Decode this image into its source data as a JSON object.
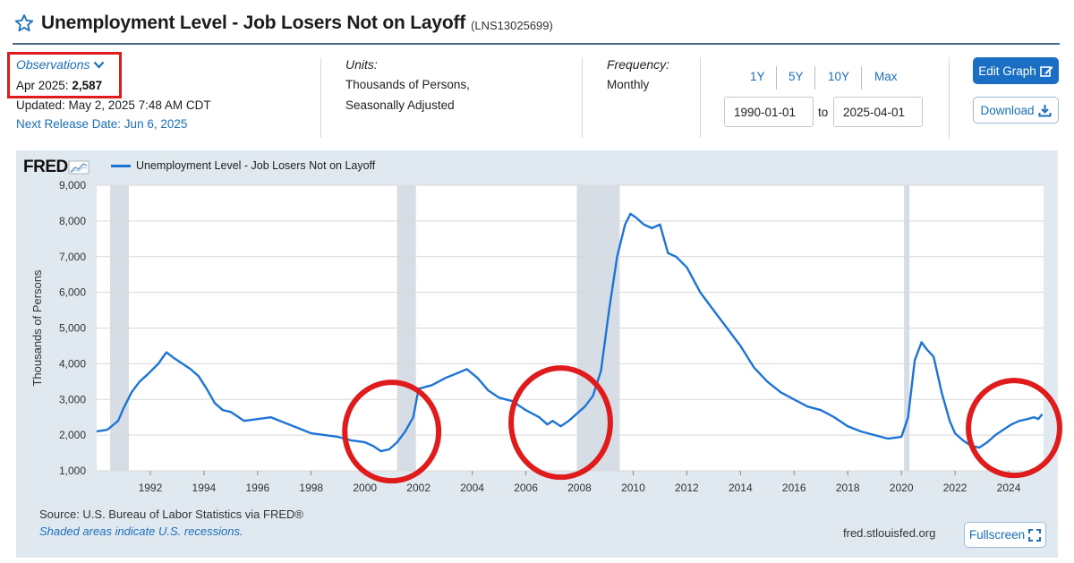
{
  "header": {
    "title": "Unemployment Level - Job Losers Not on Layoff",
    "series_id": "(LNS13025699)"
  },
  "observations": {
    "label": "Observations",
    "date": "Apr 2025:",
    "value": "2,587",
    "updated": "Updated: May 2, 2025 7:48 AM CDT",
    "next_release": "Next Release Date: Jun 6, 2025"
  },
  "units": {
    "title": "Units:",
    "line1": "Thousands of Persons,",
    "line2": "Seasonally Adjusted"
  },
  "frequency": {
    "title": "Frequency:",
    "value": "Monthly"
  },
  "range": {
    "buttons": [
      "1Y",
      "5Y",
      "10Y",
      "Max"
    ],
    "start": "1990-01-01",
    "to_label": "to",
    "end": "2025-04-01"
  },
  "actions": {
    "edit_graph": "Edit Graph",
    "download": "Download",
    "fullscreen": "Fullscreen"
  },
  "chart_meta": {
    "logo": "FRED",
    "source": "Source: U.S. Bureau of Labor Statistics via FRED®",
    "shaded_note": "Shaded areas indicate U.S. recessions.",
    "url": "fred.stlouisfed.org",
    "line_color": "#1e74d6",
    "recession_color": "#d6dde4",
    "annotation_color": "#e01b1b"
  },
  "chart_data": {
    "type": "line",
    "ylabel": "Thousands of Persons",
    "ylim": [
      1000,
      9000
    ],
    "xlim": [
      1990.0,
      2025.3
    ],
    "yticks": [
      1000,
      2000,
      3000,
      4000,
      5000,
      6000,
      7000,
      8000,
      9000
    ],
    "ytick_labels": [
      "1,000",
      "2,000",
      "3,000",
      "4,000",
      "5,000",
      "6,000",
      "7,000",
      "8,000",
      "9,000"
    ],
    "xticks": [
      1992,
      1994,
      1996,
      1998,
      2000,
      2002,
      2004,
      2006,
      2008,
      2010,
      2012,
      2014,
      2016,
      2018,
      2020,
      2022,
      2024
    ],
    "grid": true,
    "legend_position": "top-left",
    "recessions": [
      [
        1990.5,
        1991.2
      ],
      [
        2001.2,
        2001.9
      ],
      [
        2007.9,
        2009.5
      ],
      [
        2020.1,
        2020.3
      ]
    ],
    "annotations": [
      {
        "type": "circle",
        "cx": 2001.0,
        "cy": 2100,
        "rx": 1.75,
        "ry": 1380
      },
      {
        "type": "circle",
        "cx": 2007.3,
        "cy": 2350,
        "rx": 1.85,
        "ry": 1530
      },
      {
        "type": "circle",
        "cx": 2024.2,
        "cy": 2200,
        "rx": 1.7,
        "ry": 1330
      }
    ],
    "series": [
      {
        "name": "Unemployment Level - Job Losers Not on Layoff",
        "x": [
          1990.0,
          1990.4,
          1990.8,
          1991.0,
          1991.3,
          1991.6,
          1991.9,
          1992.3,
          1992.6,
          1992.9,
          1993.2,
          1993.5,
          1993.8,
          1994.1,
          1994.4,
          1994.7,
          1995.0,
          1995.5,
          1996.0,
          1996.5,
          1997.0,
          1997.5,
          1998.0,
          1998.5,
          1999.0,
          1999.5,
          2000.0,
          2000.3,
          2000.6,
          2000.9,
          2001.2,
          2001.5,
          2001.8,
          2002.0,
          2002.5,
          2003.0,
          2003.5,
          2003.8,
          2004.2,
          2004.6,
          2005.0,
          2005.5,
          2006.0,
          2006.5,
          2006.8,
          2007.0,
          2007.3,
          2007.6,
          2007.9,
          2008.2,
          2008.5,
          2008.8,
          2009.1,
          2009.4,
          2009.7,
          2009.9,
          2010.1,
          2010.4,
          2010.7,
          2011.0,
          2011.3,
          2011.6,
          2012.0,
          2012.5,
          2013.0,
          2013.5,
          2014.0,
          2014.5,
          2015.0,
          2015.5,
          2016.0,
          2016.5,
          2017.0,
          2017.5,
          2018.0,
          2018.5,
          2019.0,
          2019.5,
          2020.0,
          2020.25,
          2020.5,
          2020.75,
          2020.95,
          2021.2,
          2021.5,
          2021.8,
          2022.0,
          2022.3,
          2022.6,
          2022.9,
          2023.2,
          2023.5,
          2023.8,
          2024.1,
          2024.4,
          2024.7,
          2024.95,
          2025.1,
          2025.25
        ],
        "values": [
          2100,
          2150,
          2400,
          2750,
          3200,
          3500,
          3700,
          4000,
          4320,
          4150,
          4000,
          3850,
          3650,
          3300,
          2900,
          2700,
          2650,
          2400,
          2450,
          2500,
          2350,
          2200,
          2050,
          2000,
          1950,
          1850,
          1800,
          1700,
          1550,
          1600,
          1800,
          2100,
          2500,
          3300,
          3400,
          3600,
          3750,
          3850,
          3600,
          3250,
          3050,
          2950,
          2700,
          2500,
          2300,
          2400,
          2250,
          2400,
          2600,
          2800,
          3100,
          3800,
          5500,
          7000,
          7900,
          8200,
          8100,
          7900,
          7800,
          7900,
          7100,
          7000,
          6700,
          6000,
          5500,
          5000,
          4500,
          3900,
          3500,
          3200,
          3000,
          2800,
          2700,
          2500,
          2250,
          2100,
          2000,
          1900,
          1950,
          2500,
          4100,
          4600,
          4400,
          4200,
          3200,
          2400,
          2050,
          1850,
          1700,
          1650,
          1800,
          2000,
          2150,
          2300,
          2400,
          2450,
          2500,
          2450,
          2587
        ]
      }
    ]
  }
}
